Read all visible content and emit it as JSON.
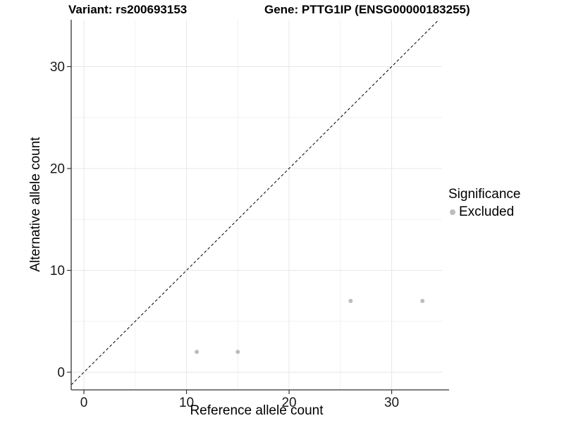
{
  "titles": {
    "variant": "Variant: rs200693153",
    "gene": "Gene: PTTG1IP (ENSG00000183255)"
  },
  "chart_data": {
    "type": "scatter",
    "xlabel": "Reference allele count",
    "ylabel": "Alternative allele count",
    "xlim": [
      -1.24,
      34.91
    ],
    "ylim": [
      -1.73,
      34.6
    ],
    "x_ticks": [
      0,
      10,
      20,
      30
    ],
    "y_ticks": [
      0,
      10,
      20,
      30
    ],
    "minor_grid_x": [
      5,
      15,
      25
    ],
    "minor_grid_y": [
      5,
      15,
      25
    ],
    "grid": true,
    "reference_line": {
      "type": "identity",
      "equation": "y = x",
      "style": "dashed",
      "color": "#000000"
    },
    "series": [
      {
        "name": "Excluded",
        "color": "#bdbdbd",
        "points": [
          [
            11,
            2
          ],
          [
            15,
            2
          ],
          [
            26,
            7
          ],
          [
            33,
            7
          ]
        ]
      }
    ],
    "legend": {
      "title": "Significance",
      "position": "right",
      "items": [
        {
          "label": "Excluded",
          "color": "#bdbdbd"
        }
      ]
    }
  },
  "style": {
    "point_color": "#bdbdbd",
    "axis_line_color": "#333333",
    "major_grid_color": "#e7e7e7",
    "minor_grid_color": "#f2f2f2",
    "tick_label_color": "#1a1a1a"
  }
}
